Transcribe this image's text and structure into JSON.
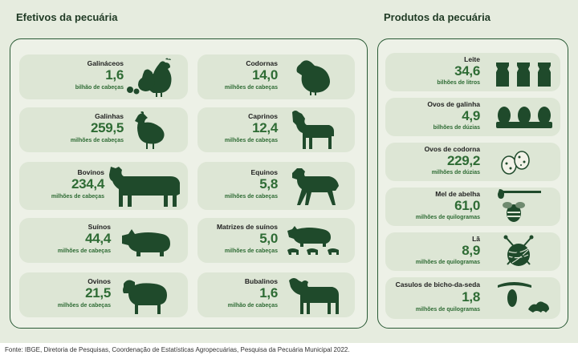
{
  "left_title": "Efetivos da pecuária",
  "right_title": "Produtos da pecuária",
  "livestock": [
    {
      "label": "Galináceos",
      "value": "1,6",
      "unit": "bilhão de cabeças",
      "icon": "chicken-hen-rooster-icon"
    },
    {
      "label": "Galinhas",
      "value": "259,5",
      "unit": "milhões de cabeças",
      "icon": "hen-icon"
    },
    {
      "label": "Bovinos",
      "value": "234,4",
      "unit": "milhões de cabeças",
      "icon": "cow-icon"
    },
    {
      "label": "Suínos",
      "value": "44,4",
      "unit": "milhões de cabeças",
      "icon": "pig-icon"
    },
    {
      "label": "Ovinos",
      "value": "21,5",
      "unit": "milhões de cabeças",
      "icon": "sheep-icon"
    },
    {
      "label": "Codornas",
      "value": "14,0",
      "unit": "milhões de cabeças",
      "icon": "quail-icon"
    },
    {
      "label": "Caprinos",
      "value": "12,4",
      "unit": "milhões de cabeças",
      "icon": "goat-icon"
    },
    {
      "label": "Equinos",
      "value": "5,8",
      "unit": "milhões de cabeças",
      "icon": "horse-icon"
    },
    {
      "label": "Matrizes de suínos",
      "value": "5,0",
      "unit": "milhões de cabeças",
      "icon": "sow-piglets-icon"
    },
    {
      "label": "Bubalinos",
      "value": "1,6",
      "unit": "milhão de cabeças",
      "icon": "buffalo-icon"
    }
  ],
  "products": [
    {
      "label": "Leite",
      "value": "34,6",
      "unit": "bilhões de litros",
      "icon": "milk-bottles-icon"
    },
    {
      "label": "Ovos de galinha",
      "value": "4,9",
      "unit": "bilhões de dúzias",
      "icon": "eggs-icon"
    },
    {
      "label": "Ovos de codorna",
      "value": "229,2",
      "unit": "milhões de dúzias",
      "icon": "quail-eggs-icon"
    },
    {
      "label": "Mel de abelha",
      "value": "61,0",
      "unit": "milhões de quilogramas",
      "icon": "honey-bee-icon"
    },
    {
      "label": "Lã",
      "value": "8,9",
      "unit": "milhões de quilogramas",
      "icon": "wool-yarn-icon"
    },
    {
      "label": "Casulos de bicho-da-seda",
      "value": "1,8",
      "unit": "milhões de quilogramas",
      "icon": "silkworm-icon"
    }
  ],
  "footer": "Fonte: IBGE, Diretoria de Pesquisas, Coordenação de Estatísticas Agropecuárias, Pesquisa da Pecuária Municipal 2022.",
  "colors": {
    "dark_green": "#1f4a2b",
    "value_green": "#2e6b34",
    "card_bg": "#dde6d5",
    "page_bg": "#e6ecdf"
  }
}
